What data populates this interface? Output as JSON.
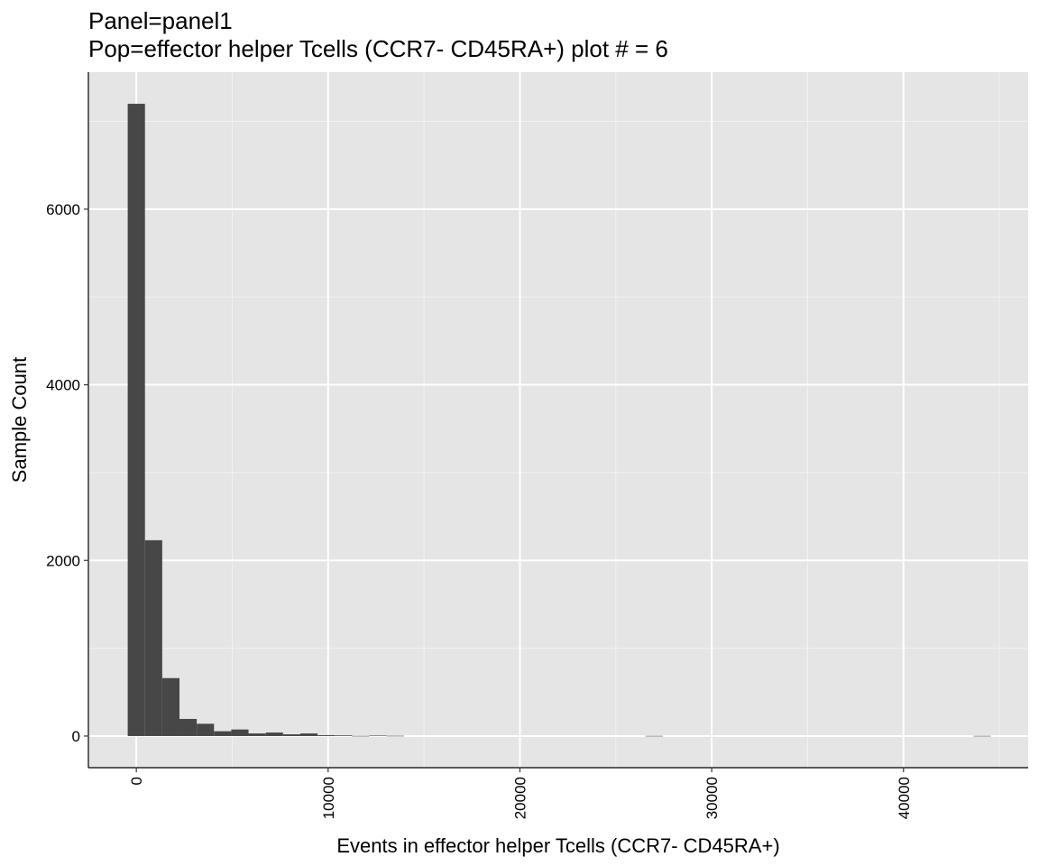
{
  "title_line1": "Panel=panel1",
  "title_line2": "Pop=effector helper Tcells (CCR7- CD45RA+) plot # = 6",
  "chart_data": {
    "type": "bar",
    "xlabel": "Events in effector helper Tcells (CCR7- CD45RA+)",
    "ylabel": "Sample Count",
    "xlim": [
      -2500,
      46500
    ],
    "ylim": [
      -360,
      7560
    ],
    "x_ticks": [
      0,
      10000,
      20000,
      30000,
      40000
    ],
    "x_tick_labels": [
      "0",
      "10000",
      "20000",
      "30000",
      "40000"
    ],
    "y_ticks": [
      0,
      2000,
      4000,
      6000
    ],
    "y_tick_labels": [
      "0",
      "2000",
      "4000",
      "6000"
    ],
    "grid": true,
    "background": "#e5e5e5",
    "bar_color": "#474747",
    "bin_width": 900,
    "bins": [
      {
        "x0": -450,
        "count": 7200
      },
      {
        "x0": 450,
        "count": 2230
      },
      {
        "x0": 1350,
        "count": 660
      },
      {
        "x0": 2250,
        "count": 195
      },
      {
        "x0": 3150,
        "count": 140
      },
      {
        "x0": 4050,
        "count": 55
      },
      {
        "x0": 4950,
        "count": 75
      },
      {
        "x0": 5850,
        "count": 30
      },
      {
        "x0": 6750,
        "count": 40
      },
      {
        "x0": 7650,
        "count": 20
      },
      {
        "x0": 8550,
        "count": 30
      },
      {
        "x0": 9450,
        "count": 10
      },
      {
        "x0": 10350,
        "count": 8
      },
      {
        "x0": 11250,
        "count": 2
      },
      {
        "x0": 12150,
        "count": 6
      },
      {
        "x0": 13050,
        "count": 3
      },
      {
        "x0": 26550,
        "count": 2
      },
      {
        "x0": 43650,
        "count": 2
      }
    ]
  }
}
